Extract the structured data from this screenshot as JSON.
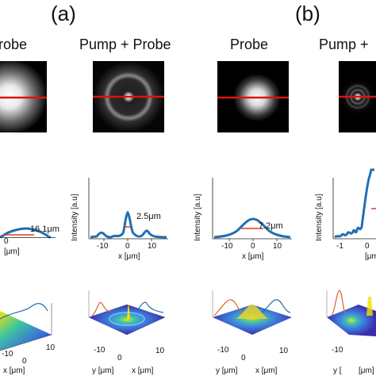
{
  "panels": {
    "a": "(a)",
    "b": "(b)"
  },
  "columns": [
    {
      "title": "robe"
    },
    {
      "title": "Pump + Probe"
    },
    {
      "title": "Probe"
    },
    {
      "title": "Pump +"
    }
  ],
  "colors": {
    "profile": "#1f6fb4",
    "fwhm_marker": "#e03a2a",
    "scan_line": "#e01010",
    "surface_low": "#3b2ea8",
    "surface_high": "#f5e100"
  },
  "profiles": {
    "ylabel": "Intensity [a.u]",
    "xlabel": "x [μm]",
    "xlabel_partial": "[μm]",
    "xticks": [
      "-10",
      "0",
      "10"
    ],
    "xticks_partial_col1": [
      "0"
    ],
    "xticks_partial_col4": [
      "-1",
      "0"
    ],
    "fwhm": [
      "16.1μm",
      "2.5μm",
      "7.2μm"
    ]
  },
  "surfaces": {
    "xlabel": "x [μm]",
    "ylabel": "y [μm]",
    "ylabel_partial": "y [",
    "xlabel_partial": "[μm]",
    "ticks_col1": [
      "-10",
      "0",
      "10"
    ],
    "ticks_col2": [
      "-10",
      "0",
      "10"
    ],
    "ticks_col3": [
      "-10",
      "0",
      "10"
    ],
    "ticks_col4": [
      "-10"
    ]
  }
}
